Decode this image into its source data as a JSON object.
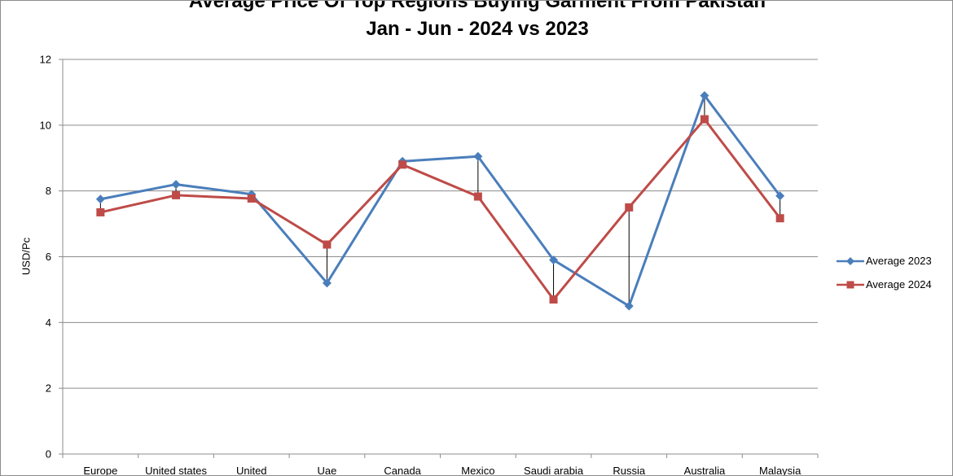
{
  "chart_data": {
    "type": "line",
    "title": "Average Price Of Top Regions Buying Garment From Pakistan",
    "subtitle": "Jan - Jun - 2024 vs 2023",
    "xlabel": "",
    "ylabel": "USD/Pc",
    "ylim": [
      0,
      12
    ],
    "yticks": [
      "0",
      "2",
      "4",
      "6",
      "8",
      "10",
      "12"
    ],
    "grid": true,
    "legend_position": "right",
    "categories": [
      "Europe",
      "United states",
      "United",
      "Uae",
      "Canada",
      "Mexico",
      "Saudi arabia",
      "Russia",
      "Australia",
      "Malaysia"
    ],
    "series": [
      {
        "name": "Average 2023",
        "color": "#4a7ebb",
        "marker": "diamond",
        "values": [
          7.75,
          8.2,
          7.9,
          5.2,
          8.9,
          9.05,
          5.9,
          4.5,
          10.9,
          7.85
        ]
      },
      {
        "name": "Average 2024",
        "color": "#be4b48",
        "marker": "square",
        "values": [
          7.35,
          7.87,
          7.77,
          6.37,
          8.8,
          7.83,
          4.7,
          7.5,
          10.18,
          7.17
        ]
      }
    ]
  }
}
